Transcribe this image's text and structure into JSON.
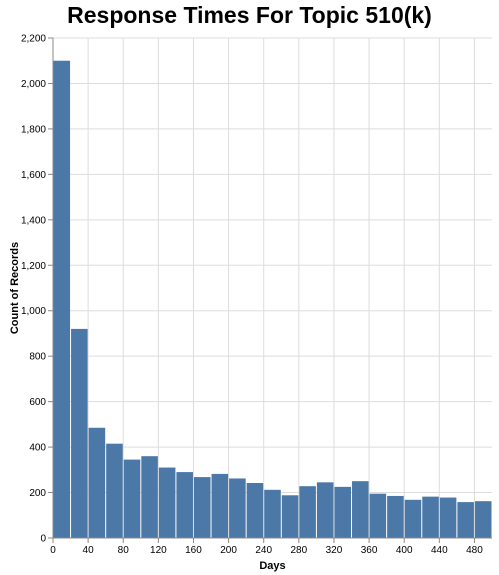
{
  "chart_data": {
    "type": "bar",
    "title": "Response Times For Topic 510(k)",
    "xlabel": "Days",
    "ylabel": "Count of Records",
    "bin_width": 20,
    "x": [
      0,
      20,
      40,
      60,
      80,
      100,
      120,
      140,
      160,
      180,
      200,
      220,
      240,
      260,
      280,
      300,
      320,
      340,
      360,
      380,
      400,
      420,
      440,
      460,
      480
    ],
    "values": [
      2100,
      920,
      485,
      415,
      345,
      360,
      310,
      290,
      268,
      282,
      262,
      242,
      212,
      188,
      228,
      245,
      225,
      250,
      195,
      185,
      168,
      182,
      178,
      158,
      162
    ],
    "xlim": [
      0,
      500
    ],
    "ylim": [
      0,
      2200
    ],
    "x_ticks": [
      0,
      40,
      80,
      120,
      160,
      200,
      240,
      280,
      320,
      360,
      400,
      440,
      480
    ],
    "x_tick_labels": [
      "0",
      "40",
      "80",
      "120",
      "160",
      "200",
      "240",
      "280",
      "320",
      "360",
      "400",
      "440",
      "480"
    ],
    "y_ticks": [
      0,
      200,
      400,
      600,
      800,
      1000,
      1200,
      1400,
      1600,
      1800,
      2000,
      2200
    ],
    "y_tick_labels": [
      "0",
      "200",
      "400",
      "600",
      "800",
      "1,000",
      "1,200",
      "1,400",
      "1,600",
      "1,800",
      "2,000",
      "2,200"
    ],
    "grid": true,
    "colors": {
      "bar": "#4c78a8",
      "grid": "#dddddd",
      "axis": "#888888"
    }
  }
}
